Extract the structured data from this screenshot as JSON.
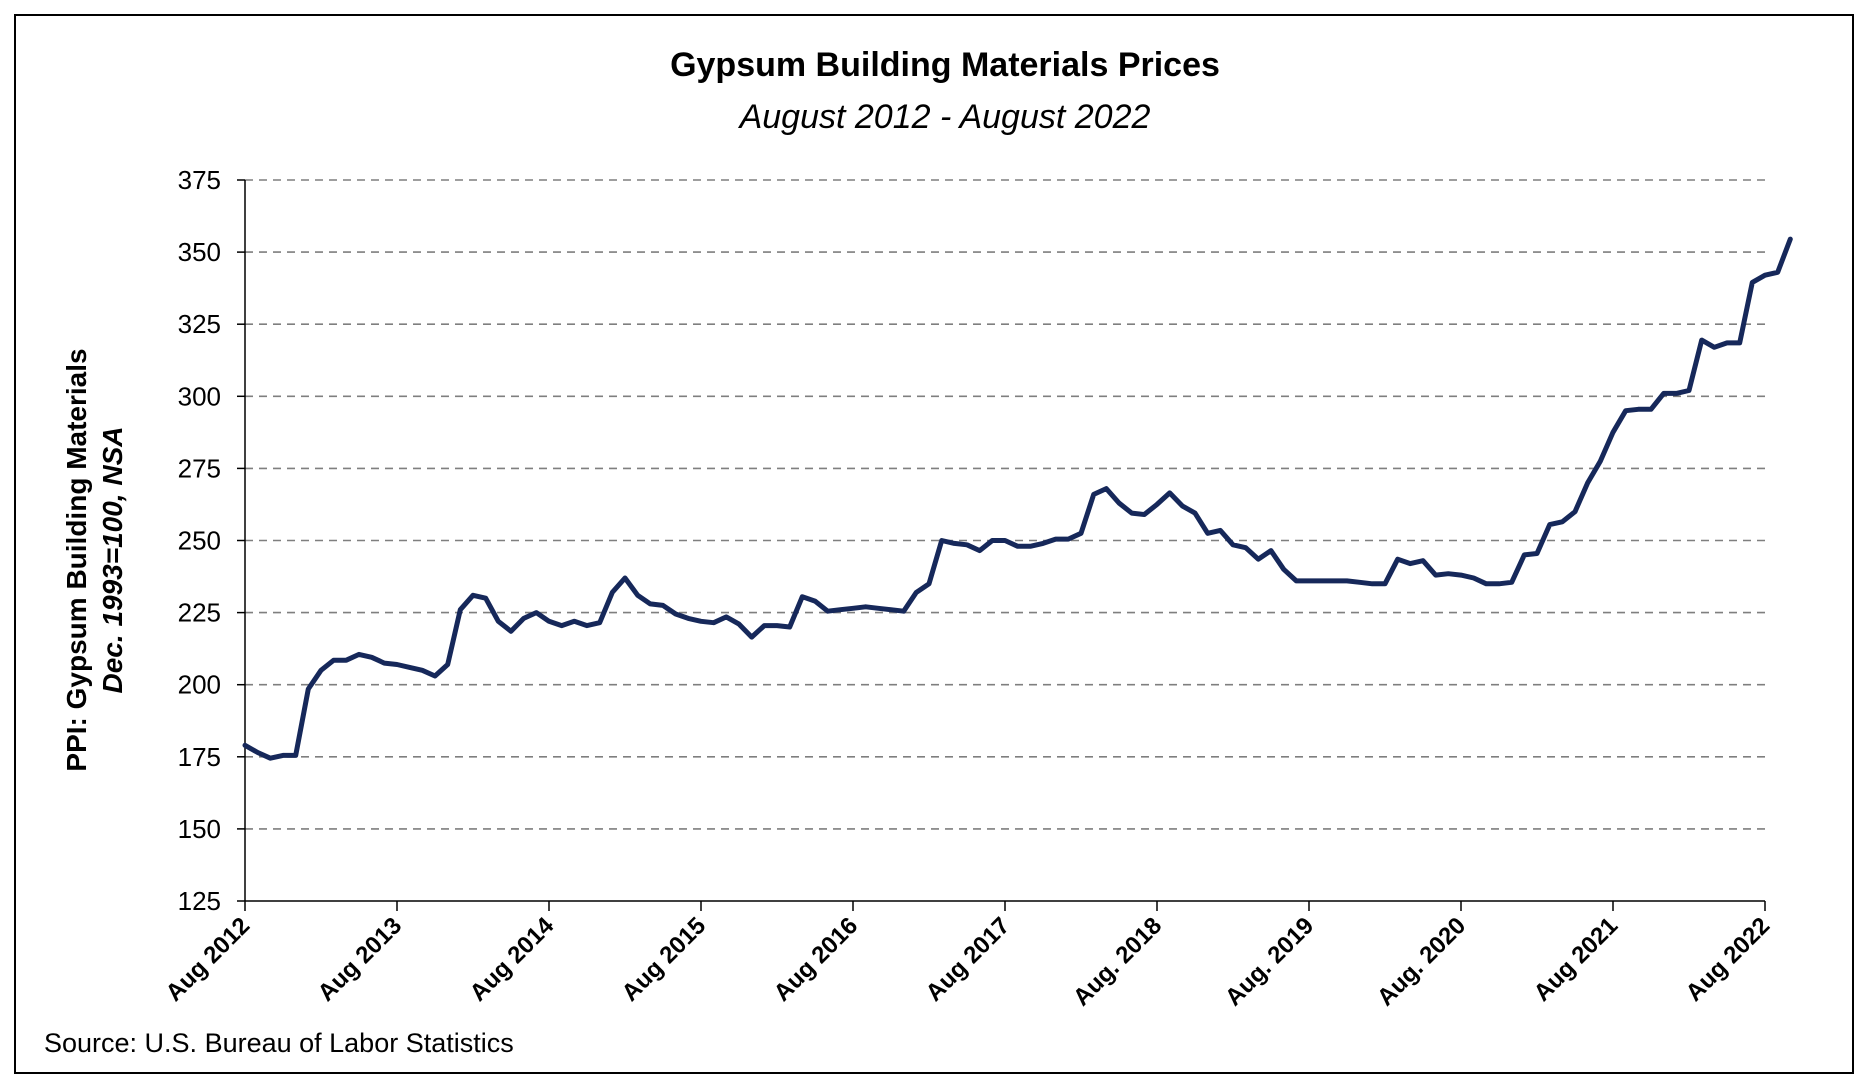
{
  "chart_data": {
    "type": "line",
    "title": "Gypsum Building Materials Prices",
    "subtitle": "August 2012 - August 2022",
    "ylabel": "PPI: Gypsum Building Materials",
    "ylabel2": "Dec. 1993=100, NSA",
    "source": "Source: U.S. Bureau of Labor Statistics",
    "ylim": [
      125,
      375
    ],
    "yticks": [
      125,
      150,
      175,
      200,
      225,
      250,
      275,
      300,
      325,
      350,
      375
    ],
    "grid": true,
    "xlim": [
      0,
      120
    ],
    "xticks": [
      {
        "pos": 0,
        "label": "Aug 2012"
      },
      {
        "pos": 12,
        "label": "Aug 2013"
      },
      {
        "pos": 24,
        "label": "Aug 2014"
      },
      {
        "pos": 36,
        "label": "Aug 2015"
      },
      {
        "pos": 48,
        "label": "Aug 2016"
      },
      {
        "pos": 60,
        "label": "Aug 2017"
      },
      {
        "pos": 72,
        "label": "Aug. 2018"
      },
      {
        "pos": 84,
        "label": "Aug. 2019"
      },
      {
        "pos": 96,
        "label": "Aug. 2020"
      },
      {
        "pos": 108,
        "label": "Aug 2021"
      },
      {
        "pos": 120,
        "label": "Aug 2022"
      }
    ],
    "colors": {
      "line": "#16285a",
      "grid": "#7f7f7f"
    },
    "series": [
      {
        "name": "",
        "values": [
          179,
          176.5,
          174.5,
          175.5,
          175.5,
          198.5,
          205,
          208.5,
          208.5,
          210.5,
          209.5,
          207.5,
          207,
          206,
          205,
          203,
          207,
          226,
          231,
          230,
          222,
          218.5,
          223,
          225,
          222,
          220.5,
          222,
          220.5,
          221.5,
          232,
          237,
          231,
          228,
          227.5,
          224.5,
          223,
          222,
          221.5,
          223.5,
          221,
          216.5,
          220.5,
          220.5,
          220,
          230.5,
          229,
          225.5,
          226,
          226.5,
          227,
          226.5,
          226,
          225.5,
          232,
          235,
          250,
          249,
          248.5,
          246.5,
          250,
          250,
          248,
          248,
          249,
          250.5,
          250.5,
          252.5,
          266,
          268,
          263,
          259.5,
          259,
          262.5,
          266.5,
          262,
          259.5,
          252.5,
          253.5,
          248.5,
          247.5,
          243.5,
          246.5,
          240,
          236,
          236,
          236,
          236,
          236,
          235.5,
          235,
          235,
          243.5,
          242,
          243,
          238,
          238.5,
          238,
          237,
          235,
          235,
          235.5,
          245,
          245.5,
          255.5,
          256.5,
          260,
          270,
          277.5,
          287.5,
          295,
          295.5,
          295.5,
          301,
          301,
          302,
          319.5,
          317,
          318.5,
          318.5,
          339.5,
          342,
          343,
          354.5
        ]
      }
    ]
  }
}
